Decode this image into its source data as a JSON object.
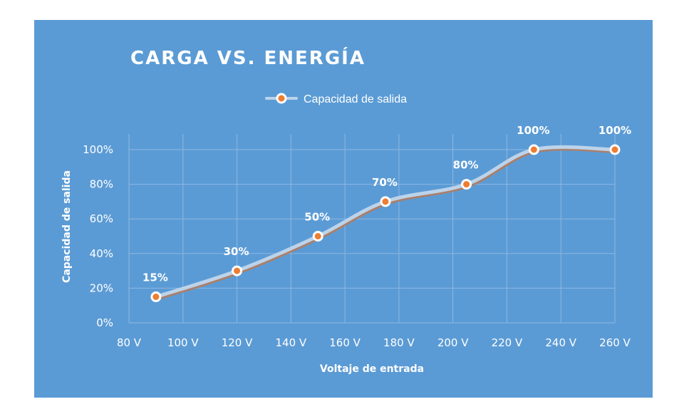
{
  "colors": {
    "background": "#5b9bd5",
    "gridline": "#8cb8e3",
    "line_shadow": "#b97a57",
    "line": "#bcd3ea",
    "marker_fill": "#ed7d31",
    "marker_ring": "#ffffff",
    "text": "#ffffff"
  },
  "chart_data": {
    "type": "line",
    "title": "CARGA  VS. ENERGÍA",
    "xlabel": "Voltaje de entrada",
    "ylabel": "Capacidad de salida",
    "legend": {
      "position": "top",
      "entries": [
        "Capacidad de salida"
      ]
    },
    "grid": true,
    "smooth": true,
    "xlim": [
      80,
      260
    ],
    "ylim": [
      0,
      100
    ],
    "x_ticks": [
      80,
      100,
      120,
      140,
      160,
      180,
      200,
      220,
      240,
      260
    ],
    "x_tick_labels": [
      "80 V",
      "100 V",
      "120 V",
      "140 V",
      "160 V",
      "180 V",
      "200 V",
      "220 V",
      "240 V",
      "260 V"
    ],
    "y_ticks": [
      0,
      20,
      40,
      60,
      80,
      100
    ],
    "y_tick_labels": [
      "0%",
      "20%",
      "40%",
      "60%",
      "80%",
      "100%"
    ],
    "series": [
      {
        "name": "Capacidad de salida",
        "x": [
          90,
          120,
          150,
          175,
          205,
          230,
          260
        ],
        "y": [
          15,
          30,
          50,
          70,
          80,
          100,
          100
        ],
        "labels": [
          "15%",
          "30%",
          "50%",
          "70%",
          "80%",
          "100%",
          "100%"
        ]
      }
    ]
  }
}
